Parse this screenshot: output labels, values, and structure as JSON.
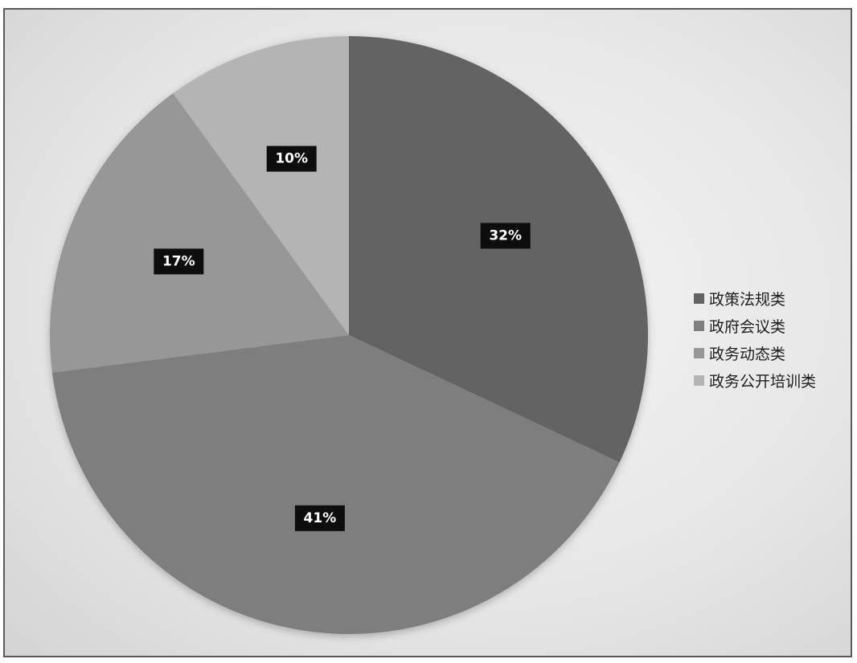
{
  "chart_data": {
    "type": "pie",
    "title": "",
    "start_angle_deg": 0,
    "direction": "clockwise",
    "legend_position": "right",
    "slices": [
      {
        "name": "政策法规类",
        "value": 32,
        "label": "32%",
        "color": "#636363"
      },
      {
        "name": "政府会议类",
        "value": 41,
        "label": "41%",
        "color": "#7e7e7e"
      },
      {
        "name": "政务动态类",
        "value": 17,
        "label": "17%",
        "color": "#979797"
      },
      {
        "name": "政务公开培训类",
        "value": 10,
        "label": "10%",
        "color": "#b4b4b4"
      }
    ]
  }
}
